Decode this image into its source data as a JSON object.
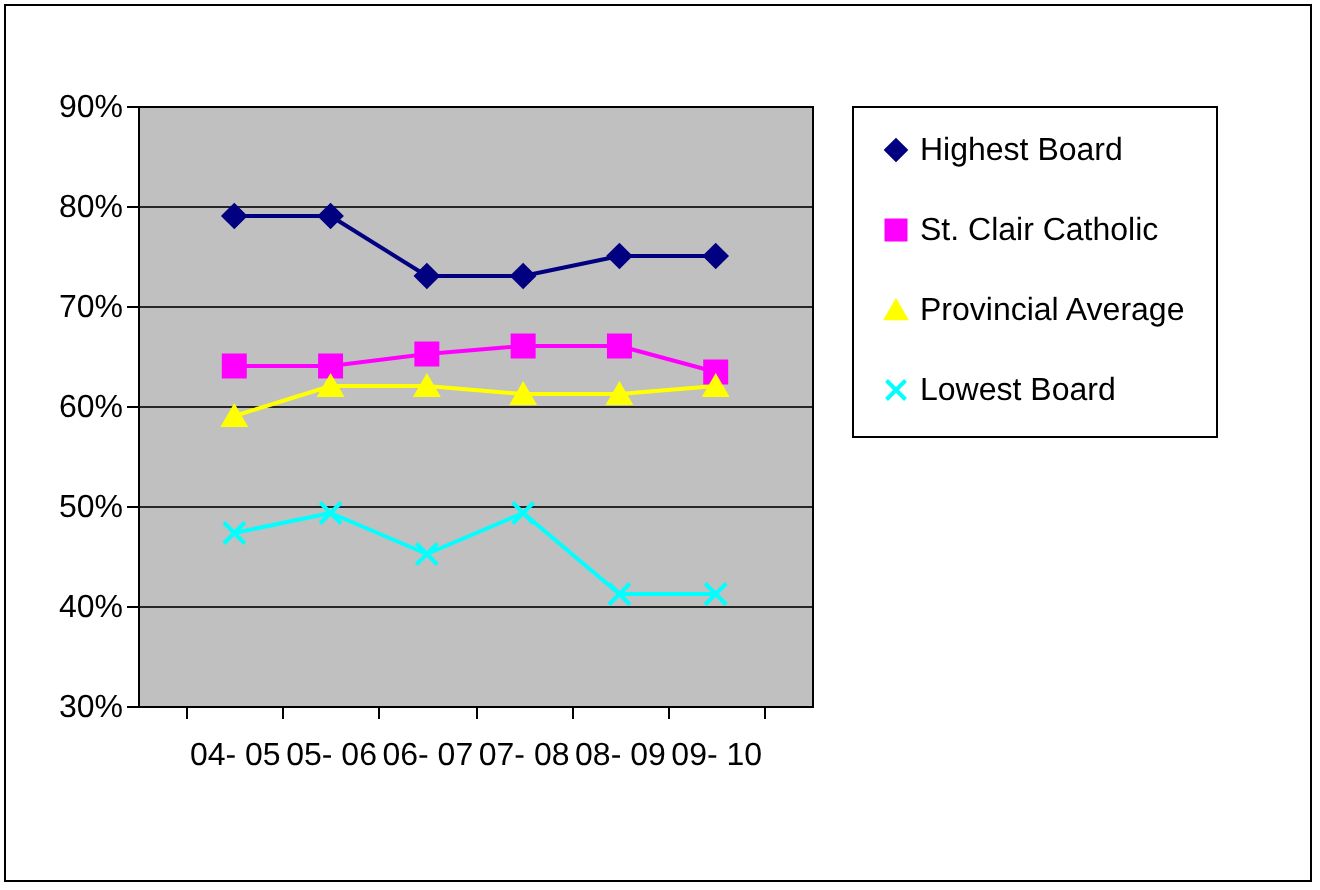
{
  "chart_data": {
    "type": "line",
    "categories": [
      "04- 05",
      "05- 06",
      "06- 07",
      "07- 08",
      "08- 09",
      "09- 10"
    ],
    "series": [
      {
        "name": "Highest Board",
        "color": "#000080",
        "marker": "diamond",
        "values": [
          79,
          79,
          73,
          73,
          75,
          75
        ]
      },
      {
        "name": "St. Clair Catholic",
        "color": "#ff00ff",
        "marker": "square",
        "values": [
          64,
          64,
          65.2,
          66,
          66,
          63.4
        ]
      },
      {
        "name": "Provincial Average",
        "color": "#ffff00",
        "marker": "triangle",
        "values": [
          59,
          62,
          62,
          61.2,
          61.2,
          62
        ]
      },
      {
        "name": "Lowest Board",
        "color": "#00ffff",
        "marker": "cross",
        "values": [
          47.3,
          49.3,
          45.2,
          49.3,
          41.2,
          41.2
        ]
      }
    ],
    "ylim": [
      30,
      90
    ],
    "yticks": [
      {
        "value": 30,
        "label": "30%"
      },
      {
        "value": 40,
        "label": "40%"
      },
      {
        "value": 50,
        "label": "50%"
      },
      {
        "value": 60,
        "label": "60%"
      },
      {
        "value": 70,
        "label": "70%"
      },
      {
        "value": 80,
        "label": "80%"
      },
      {
        "value": 90,
        "label": "90%"
      }
    ],
    "grid": "y",
    "legend": "right",
    "line_style": "solid"
  }
}
